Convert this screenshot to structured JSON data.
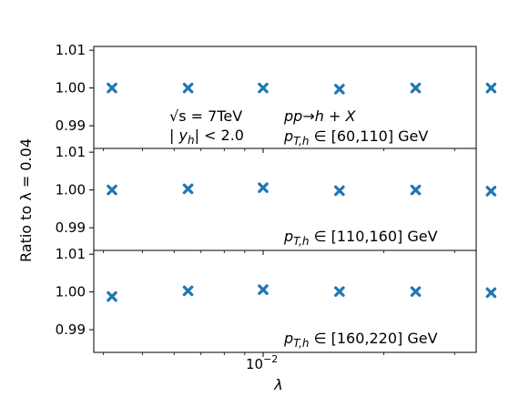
{
  "chart_data": {
    "type": "scatter",
    "xlabel": "λ",
    "ylabel": "Ratio to λ = 0.04",
    "x_scale": "log",
    "x_tick_label": "10",
    "x_tick_exponent": "−2",
    "x": [
      0.0042,
      0.0065,
      0.01,
      0.0155,
      0.024,
      0.037
    ],
    "marker_color": "#1f77b4",
    "marker": "x-filled",
    "ylim": [
      0.984,
      1.011
    ],
    "yticks": [
      "1.01",
      "1.00",
      "0.99"
    ],
    "panels": [
      {
        "values": [
          1.0,
          1.0,
          1.0,
          0.9997,
          1.0,
          1.0
        ],
        "annotations": {
          "sqrt_s": "√s = 7TeV",
          "rapidity": "|y_h| < 2.0",
          "process": "pp→h + X",
          "pt_range": "p_T,h ∈ [60,110] GeV"
        }
      },
      {
        "values": [
          1.0,
          1.0003,
          1.0006,
          0.9998,
          1.0,
          0.9997
        ],
        "annotations": {
          "pt_range": "p_T,h ∈ [110,160] GeV"
        }
      },
      {
        "values": [
          0.9988,
          1.0003,
          1.0006,
          1.0001,
          1.0001,
          0.9998
        ],
        "annotations": {
          "pt_range": "p_T,h ∈ [160,220] GeV"
        }
      }
    ]
  }
}
